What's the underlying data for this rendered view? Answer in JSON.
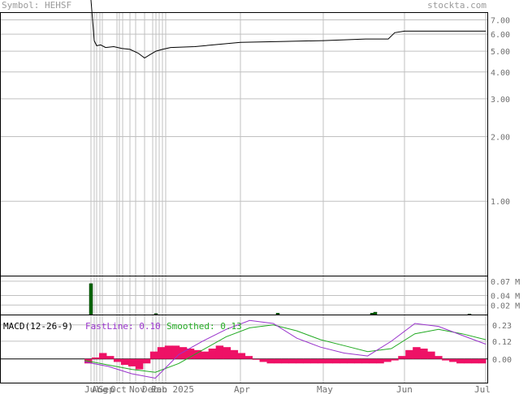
{
  "header": {
    "symbol_label": "Symbol: HEHSF",
    "site": "stockta.com"
  },
  "colors": {
    "grid": "#c0c0c0",
    "price_line": "#000000",
    "volume_bar": "#006400",
    "macd_fast": "#9933cc",
    "macd_smoothed": "#22aa22",
    "macd_histogram": "#ee1166",
    "axis_text": "#707070"
  },
  "chart_data": [
    {
      "type": "line",
      "panel": "price",
      "scale": "log",
      "y_ticks": [
        {
          "value": 7.0,
          "label": "7.00"
        },
        {
          "value": 6.0,
          "label": "6.00"
        },
        {
          "value": 5.0,
          "label": "5.00"
        },
        {
          "value": 4.0,
          "label": "4.00"
        },
        {
          "value": 3.0,
          "label": "3.00"
        },
        {
          "value": 2.0,
          "label": "2.00"
        },
        {
          "value": 1.0,
          "label": "1.00"
        }
      ],
      "x_ticks": [
        "Jul",
        "Aug",
        "Sep",
        "Oct",
        "Nov",
        "Dec",
        "Jan",
        "Feb 2025",
        "Apr",
        "May",
        "Jun",
        "Jul"
      ],
      "series": [
        {
          "points": [
            [
              0,
              60
            ],
            [
              1,
              5.6
            ],
            [
              2,
              5.3
            ],
            [
              3,
              5.2
            ],
            [
              4,
              5.0
            ],
            [
              5,
              4.6
            ],
            [
              6,
              5.0
            ],
            [
              7,
              5.3
            ],
            [
              8,
              5.6
            ],
            [
              9,
              5.7
            ],
            [
              10,
              6.2
            ],
            [
              11,
              6.2
            ]
          ]
        }
      ]
    },
    {
      "type": "bar",
      "panel": "volume",
      "y_ticks": [
        {
          "value": 0.07,
          "label": "0.07 M"
        },
        {
          "value": 0.04,
          "label": "0.04 M"
        },
        {
          "value": 0.02,
          "label": "0.02 M"
        }
      ],
      "bars": [
        {
          "x": 0,
          "value": 0.065
        },
        {
          "x": 6,
          "value": 0.002
        },
        {
          "x": 8.6,
          "value": 0.003
        },
        {
          "x": 10.2,
          "value": 0.003
        },
        {
          "x": 10.5,
          "value": 0.005
        },
        {
          "x": 11.8,
          "value": 0.001
        }
      ]
    },
    {
      "type": "line",
      "panel": "macd",
      "title": "MACD(12-26-9)",
      "fast_label": "FastLine: 0.10",
      "smoothed_label": "Smoothed: 0.13",
      "y_ticks": [
        {
          "value": 0.23,
          "label": "0.23"
        },
        {
          "value": 0.12,
          "label": "0.12"
        },
        {
          "value": 0.0,
          "label": "0.00"
        }
      ],
      "fast": [
        [
          0,
          -0.02
        ],
        [
          1,
          -0.05
        ],
        [
          2,
          -0.1
        ],
        [
          3,
          -0.13
        ],
        [
          4,
          0.03
        ],
        [
          5,
          0.12
        ],
        [
          6,
          0.2
        ],
        [
          7,
          0.26
        ],
        [
          8,
          0.24
        ],
        [
          9,
          0.14
        ],
        [
          10,
          0.08
        ],
        [
          11,
          0.04
        ],
        [
          12,
          0.02
        ],
        [
          13,
          0.12
        ],
        [
          14,
          0.24
        ],
        [
          15,
          0.22
        ],
        [
          16,
          0.16
        ],
        [
          17,
          0.1
        ]
      ],
      "smoothed": [
        [
          0,
          -0.01
        ],
        [
          1,
          -0.04
        ],
        [
          2,
          -0.07
        ],
        [
          3,
          -0.09
        ],
        [
          4,
          -0.03
        ],
        [
          5,
          0.06
        ],
        [
          6,
          0.15
        ],
        [
          7,
          0.21
        ],
        [
          8,
          0.23
        ],
        [
          9,
          0.19
        ],
        [
          10,
          0.13
        ],
        [
          11,
          0.09
        ],
        [
          12,
          0.05
        ],
        [
          13,
          0.07
        ],
        [
          14,
          0.17
        ],
        [
          15,
          0.2
        ],
        [
          16,
          0.17
        ],
        [
          17,
          0.13
        ]
      ],
      "histogram": [
        -0.03,
        0.01,
        0.04,
        0.02,
        -0.02,
        -0.04,
        -0.05,
        -0.07,
        -0.03,
        0.05,
        0.08,
        0.09,
        0.09,
        0.08,
        0.07,
        0.06,
        0.05,
        0.07,
        0.09,
        0.08,
        0.06,
        0.04,
        0.02,
        0.0,
        -0.02,
        -0.03,
        -0.03,
        -0.03,
        -0.03,
        -0.03,
        -0.03,
        -0.03,
        -0.03,
        -0.03,
        -0.03,
        -0.03,
        -0.03,
        -0.03,
        -0.03,
        -0.03,
        -0.03,
        -0.02,
        -0.01,
        0.02,
        0.06,
        0.08,
        0.07,
        0.05,
        0.02,
        -0.01,
        -0.02,
        -0.03,
        -0.03,
        -0.03,
        -0.03
      ]
    }
  ]
}
